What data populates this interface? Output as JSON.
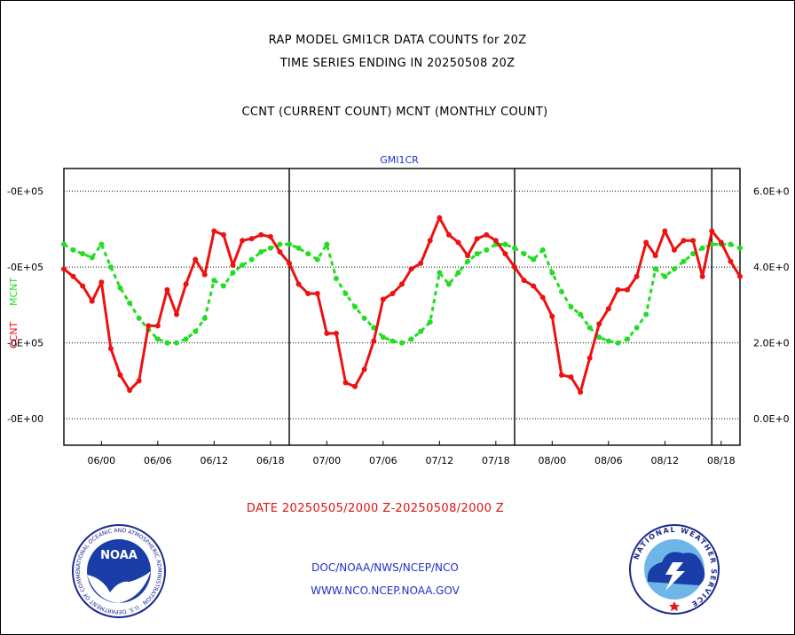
{
  "header": {
    "title_line1": "RAP MODEL GMI1CR DATA COUNTS for 20Z",
    "title_line2": "TIME SERIES ENDING IN 20250508 20Z",
    "subtitle": "CCNT (CURRENT COUNT) MCNT (MONTHLY COUNT)"
  },
  "footer": {
    "date_range": "DATE 20250505/2000 Z-20250508/2000 Z",
    "link1": "DOC/NOAA/NWS/NCEP/NCO",
    "link2": "WWW.NCO.NCEP.NOAA.GOV",
    "noaa_logo_text": "NOAA",
    "noaa_ring_text": "NATIONAL OCEANIC AND ATMOSPHERIC ADMINISTRATION · U.S. DEPARTMENT OF COMMERCE ·",
    "nws_ring_text": "NATIONAL WEATHER SERVICE"
  },
  "colors": {
    "ccnt": "#ee1111",
    "mcnt": "#22dd22",
    "panel_title": "#2233cc",
    "date_text": "#e01010",
    "link_text": "#2030c8"
  },
  "chart_data": {
    "type": "line",
    "panel_title": "GMI1CR",
    "left_axis": {
      "label_ccnt": "CCNT",
      "label_mcnt": "MCNT",
      "tick_labels": [
        "-0E+00",
        "-0E+05",
        "-0E+05",
        "-0E+05"
      ],
      "tick_values": [
        0,
        2,
        4,
        6
      ]
    },
    "right_axis": {
      "tick_labels": [
        "0.0E+0",
        "2.0E+0",
        "4.0E+0",
        "6.0E+0"
      ],
      "tick_values": [
        0,
        2,
        4,
        6
      ]
    },
    "ylim": [
      -0.7,
      6.6
    ],
    "xlim": [
      -3,
      69
    ],
    "x_ticks": [
      {
        "x": 1,
        "label": "06/00"
      },
      {
        "x": 7,
        "label": "06/06"
      },
      {
        "x": 13,
        "label": "06/12"
      },
      {
        "x": 19,
        "label": "06/18"
      },
      {
        "x": 25,
        "label": "07/00"
      },
      {
        "x": 31,
        "label": "07/06"
      },
      {
        "x": 37,
        "label": "07/12"
      },
      {
        "x": 43,
        "label": "07/18"
      },
      {
        "x": 49,
        "label": "08/00"
      },
      {
        "x": 55,
        "label": "08/06"
      },
      {
        "x": 61,
        "label": "08/12"
      },
      {
        "x": 67,
        "label": "08/18"
      }
    ],
    "day_boundaries": [
      21,
      45,
      66
    ],
    "grid_y": true,
    "series": [
      {
        "name": "CCNT",
        "x": [
          -3,
          -2,
          -1,
          0,
          1,
          2,
          3,
          4,
          5,
          6,
          7,
          8,
          9,
          10,
          11,
          12,
          13,
          14,
          15,
          16,
          17,
          18,
          19,
          20,
          21,
          22,
          23,
          24,
          25,
          26,
          27,
          28,
          29,
          30,
          31,
          32,
          33,
          34,
          35,
          36,
          37,
          38,
          39,
          40,
          41,
          42,
          43,
          44,
          45,
          46,
          47,
          48,
          49,
          50,
          51,
          52,
          53,
          54,
          55,
          56,
          57,
          58,
          59,
          60,
          61,
          62,
          63,
          64,
          65,
          66,
          67,
          68,
          69
        ],
        "values": [
          3.95,
          3.75,
          3.5,
          3.1,
          3.6,
          1.85,
          1.15,
          0.75,
          1.0,
          2.45,
          2.45,
          3.4,
          2.75,
          3.55,
          4.2,
          3.8,
          4.95,
          4.85,
          4.05,
          4.7,
          4.75,
          4.85,
          4.8,
          4.4,
          4.1,
          3.55,
          3.3,
          3.3,
          2.25,
          2.25,
          0.95,
          0.85,
          1.3,
          2.05,
          3.15,
          3.3,
          3.55,
          3.95,
          4.1,
          4.7,
          5.3,
          4.85,
          4.65,
          4.3,
          4.75,
          4.85,
          4.7,
          4.35,
          4.0,
          3.65,
          3.5,
          3.2,
          2.7,
          1.15,
          1.1,
          0.7,
          1.6,
          2.5,
          2.9,
          3.4,
          3.4,
          3.75,
          4.65,
          4.3,
          4.95,
          4.45,
          4.7,
          4.7,
          3.75,
          4.95,
          4.65,
          4.15,
          3.75
        ]
      },
      {
        "name": "MCNT",
        "x": [
          -3,
          -2,
          -1,
          0,
          1,
          2,
          3,
          4,
          5,
          6,
          7,
          8,
          9,
          10,
          11,
          12,
          13,
          14,
          15,
          16,
          17,
          18,
          19,
          20,
          21,
          22,
          23,
          24,
          25,
          26,
          27,
          28,
          29,
          30,
          31,
          32,
          33,
          34,
          35,
          36,
          37,
          38,
          39,
          40,
          41,
          42,
          43,
          44,
          45,
          46,
          47,
          48,
          49,
          50,
          51,
          52,
          53,
          54,
          55,
          56,
          57,
          58,
          59,
          60,
          61,
          62,
          63,
          64,
          65,
          66,
          67,
          68,
          69
        ],
        "values": [
          4.6,
          4.45,
          4.35,
          4.25,
          4.6,
          4.0,
          3.45,
          3.05,
          2.65,
          2.35,
          2.1,
          2.0,
          2.0,
          2.1,
          2.3,
          2.65,
          3.65,
          3.5,
          3.85,
          4.05,
          4.2,
          4.4,
          4.5,
          4.6,
          4.6,
          4.5,
          4.35,
          4.2,
          4.6,
          3.7,
          3.3,
          2.95,
          2.65,
          2.4,
          2.15,
          2.05,
          2.0,
          2.1,
          2.3,
          2.55,
          3.85,
          3.55,
          3.85,
          4.15,
          4.35,
          4.45,
          4.6,
          4.6,
          4.5,
          4.35,
          4.2,
          4.45,
          3.85,
          3.35,
          2.95,
          2.75,
          2.4,
          2.15,
          2.05,
          2.0,
          2.1,
          2.4,
          2.75,
          3.95,
          3.75,
          3.95,
          4.15,
          4.35,
          4.5,
          4.6,
          4.6,
          4.6,
          4.5
        ]
      }
    ]
  }
}
